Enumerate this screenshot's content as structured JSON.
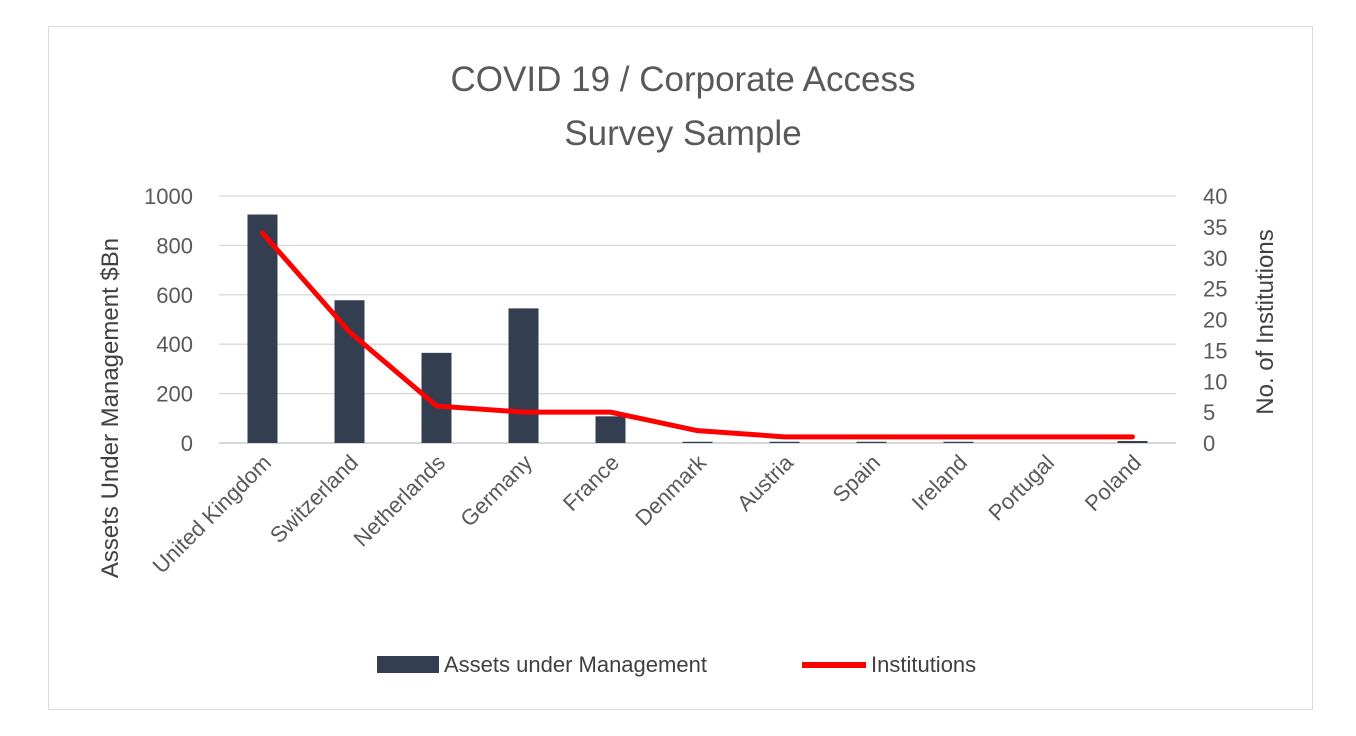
{
  "chart_data": {
    "type": "bar",
    "title": "COVID 19 / Corporate Access",
    "subtitle": "Survey Sample",
    "categories": [
      "United Kingdom",
      "Switzerland",
      "Netherlands",
      "Germany",
      "France",
      "Denmark",
      "Austria",
      "Spain",
      "Ireland",
      "Portugal",
      "Poland"
    ],
    "series": [
      {
        "name": "Assets under Management",
        "type": "bar",
        "axis": "left",
        "color": "#333f50",
        "values": [
          925,
          578,
          365,
          545,
          108,
          5,
          5,
          5,
          5,
          0,
          8
        ]
      },
      {
        "name": "Institutions",
        "type": "line",
        "axis": "right",
        "color": "#ff0000",
        "values": [
          34,
          18,
          6,
          5,
          5,
          2,
          1,
          1,
          1,
          1,
          1
        ]
      }
    ],
    "ylabel": "Assets Under Management $Bn",
    "ylim": [
      0,
      1000
    ],
    "yticks": [
      "0",
      "200",
      "400",
      "600",
      "800",
      "1000"
    ],
    "y2label": "No. of Institutions",
    "y2lim": [
      0,
      40
    ],
    "y2ticks": [
      "0",
      "5",
      "10",
      "15",
      "20",
      "25",
      "30",
      "35",
      "40"
    ],
    "grid": true,
    "legend_position": "bottom"
  }
}
